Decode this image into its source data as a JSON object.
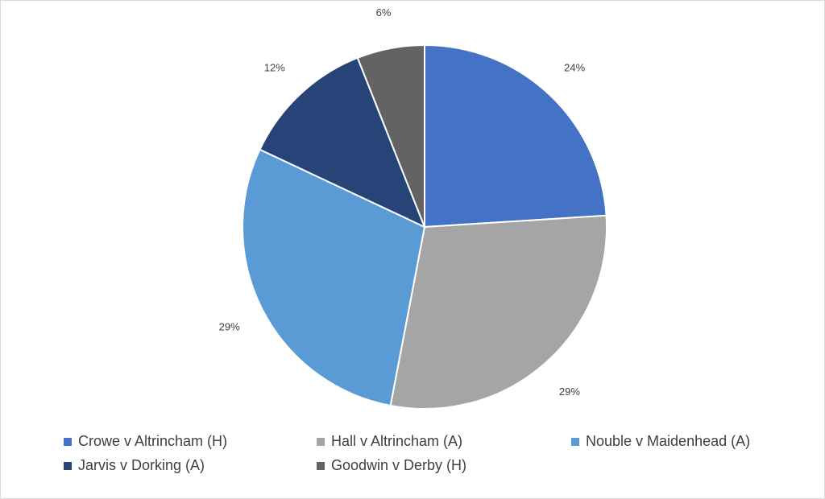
{
  "chart_data": {
    "type": "pie",
    "categories": [
      "Crowe v Altrincham (H)",
      "Hall v Altrincham (A)",
      "Nouble v Maidenhead (A)",
      "Jarvis v Dorking (A)",
      "Goodwin v Derby (H)"
    ],
    "values": [
      24,
      29,
      29,
      12,
      6
    ],
    "labels": [
      "24%",
      "29%",
      "29%",
      "12%",
      "6%"
    ],
    "colors": [
      "#4472C4",
      "#A5A5A5",
      "#5B9BD5",
      "#264478",
      "#636363"
    ],
    "legend_position": "bottom",
    "title": ""
  }
}
